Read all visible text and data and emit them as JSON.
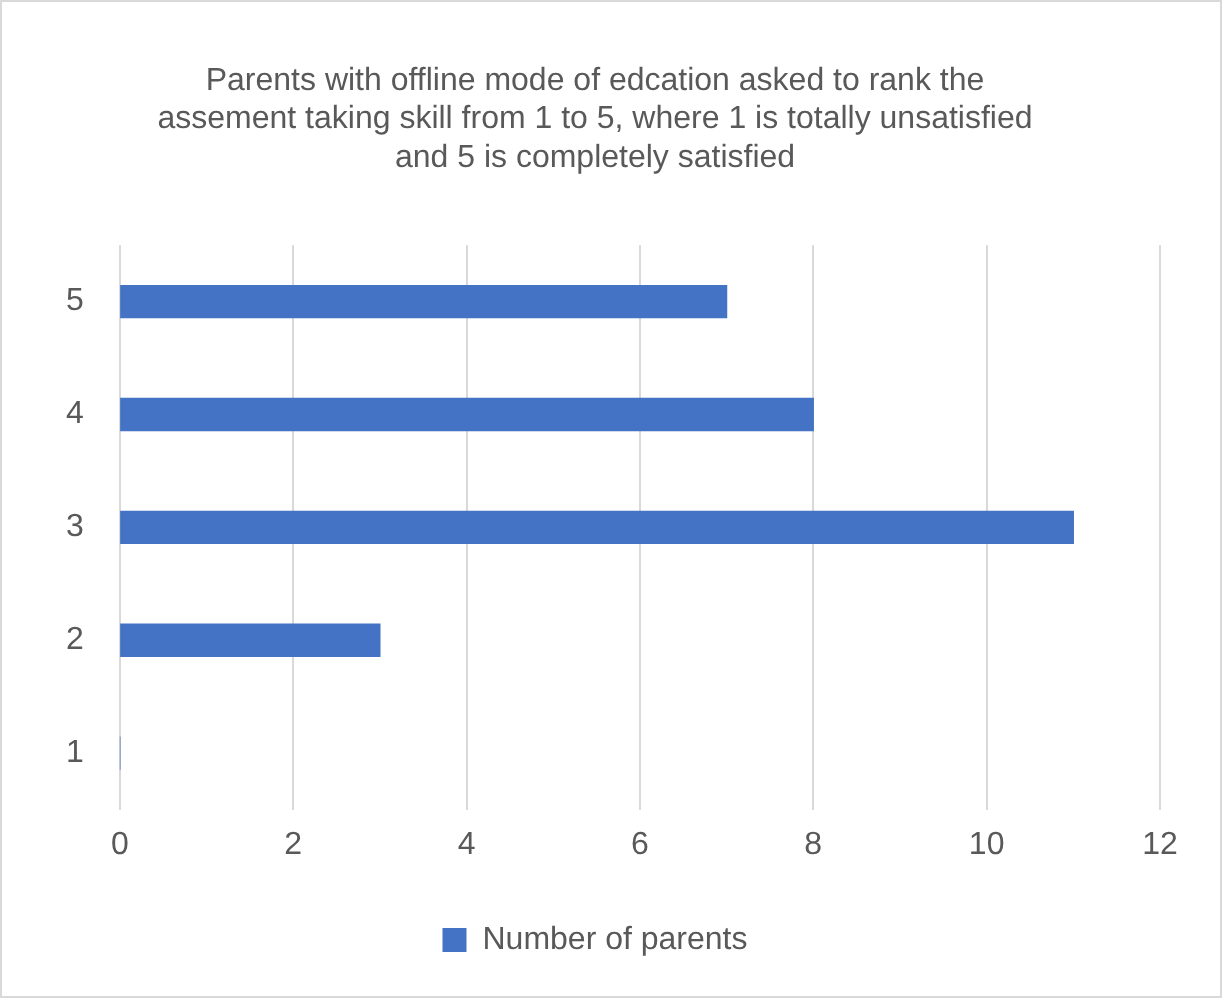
{
  "chart_data": {
    "type": "bar",
    "orientation": "horizontal",
    "title": "Parents with offline mode of edcation asked to rank the assement taking skill from 1 to 5, where 1 is totally unsatisfied and 5 is completely satisfied",
    "categories": [
      "5",
      "4",
      "3",
      "2",
      "1"
    ],
    "series": [
      {
        "name": "Number of parents",
        "color": "#4472c4",
        "values": [
          7,
          8,
          11,
          3,
          0
        ]
      }
    ],
    "xlim": [
      0,
      12
    ],
    "xticks": [
      0,
      2,
      4,
      6,
      8,
      10,
      12
    ],
    "grid": "x",
    "legend": "bottom"
  }
}
